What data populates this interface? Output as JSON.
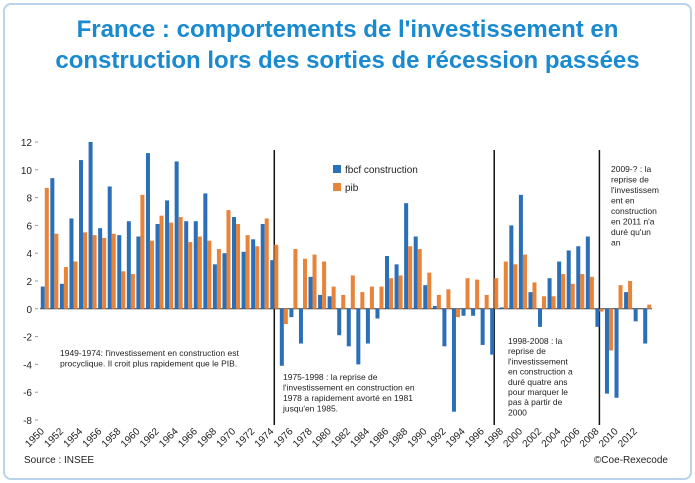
{
  "chart_data": {
    "type": "bar",
    "title": "France : comportements de l'investissement en construction lors des sorties de récession passées",
    "categories": [
      "1950",
      null,
      "1952",
      null,
      "1954",
      null,
      "1956",
      null,
      "1958",
      null,
      "1960",
      null,
      "1962",
      null,
      "1964",
      null,
      "1966",
      null,
      "1968",
      null,
      "1970",
      null,
      "1972",
      null,
      "1974",
      null,
      "1976",
      null,
      "1978",
      null,
      "1980",
      null,
      "1982",
      null,
      "1984",
      null,
      "1986",
      null,
      "1988",
      null,
      "1990",
      null,
      "1992",
      null,
      "1994",
      null,
      "1996",
      null,
      "1998",
      null,
      "2000",
      null,
      "2002",
      null,
      "2004",
      null,
      "2006",
      null,
      "2008",
      null,
      "2010",
      null,
      "2012",
      null
    ],
    "series": [
      {
        "name": "fbcf construction",
        "color": "#2a6fb8",
        "values": [
          1.6,
          9.4,
          1.8,
          6.5,
          10.7,
          12.0,
          5.8,
          8.8,
          5.3,
          6.3,
          5.2,
          11.2,
          6.1,
          7.8,
          10.6,
          6.3,
          6.3,
          8.3,
          3.2,
          4.0,
          6.6,
          4.1,
          5.0,
          6.1,
          3.5,
          -4.1,
          -0.6,
          -2.5,
          2.3,
          1.0,
          0.9,
          -1.9,
          -2.7,
          -4.0,
          -2.5,
          -0.7,
          3.8,
          3.2,
          7.6,
          5.2,
          1.7,
          0.2,
          -2.7,
          -7.4,
          -0.5,
          -0.5,
          -2.6,
          -3.3,
          0.1,
          6.0,
          8.2,
          1.2,
          -1.3,
          2.2,
          3.4,
          4.2,
          4.5,
          5.2,
          -1.3,
          -6.1,
          -6.4,
          1.2,
          -0.9,
          -2.5
        ]
      },
      {
        "name": "pib",
        "color": "#e8833a",
        "values": [
          8.7,
          5.4,
          3.0,
          3.4,
          5.5,
          5.3,
          5.1,
          5.4,
          2.7,
          2.5,
          8.2,
          4.9,
          6.7,
          6.2,
          6.6,
          4.8,
          5.2,
          4.9,
          4.3,
          7.1,
          6.1,
          5.3,
          4.5,
          6.5,
          4.6,
          -1.1,
          4.3,
          3.6,
          3.9,
          3.4,
          1.6,
          1.0,
          2.4,
          1.2,
          1.6,
          1.6,
          2.2,
          2.4,
          4.5,
          4.3,
          2.6,
          1.0,
          1.4,
          -0.6,
          2.2,
          2.1,
          1.0,
          2.2,
          3.4,
          3.2,
          3.9,
          1.9,
          0.9,
          0.9,
          2.5,
          1.8,
          2.5,
          2.3,
          -0.2,
          -3.0,
          1.7,
          2.0,
          0.0,
          0.3
        ]
      }
    ],
    "ylim": [
      -8,
      12
    ],
    "yticks": [
      -8,
      -6,
      -4,
      -2,
      0,
      2,
      4,
      6,
      8,
      10,
      12
    ],
    "legend": "top-center",
    "annotations": [
      [
        "1949-1974: l'investissement en construction est",
        "procyclique. Il croit plus rapidement que le PIB."
      ],
      [
        "1975-1998 : la reprise de",
        "l'investissement en construction en",
        "1978 a rapidement avorté en 1981",
        "jusqu'en 1985."
      ],
      [
        "1998-2008 : la",
        "reprise de",
        "l'investissement",
        "en construction a",
        "duré quatre ans",
        "pour marquer le",
        "pas à partir de",
        "2000"
      ],
      [
        "2009-? : la",
        "reprise de",
        "l'investissem",
        "ent en",
        "construction",
        "en 2011 n'a",
        "duré qu'un",
        "an"
      ]
    ],
    "source": "Source : INSEE",
    "credit": "©Coe-Rexecode"
  }
}
